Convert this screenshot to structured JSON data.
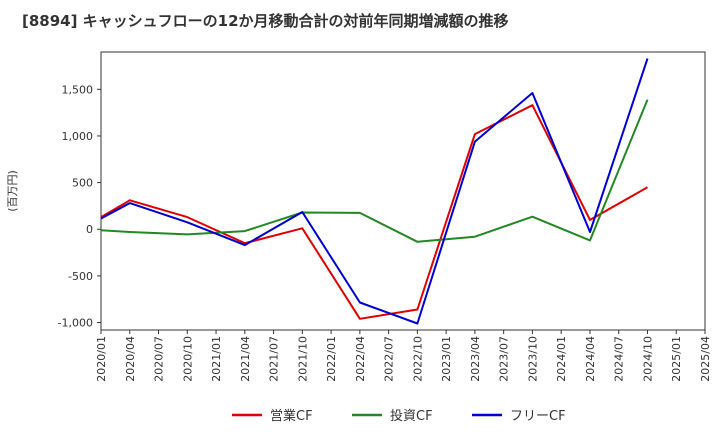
{
  "chart_data": {
    "type": "line",
    "title": "[8894]  キャッシュフローの12か月移動合計の対前年同期増減額の推移",
    "ylabel": "(百万円)",
    "xlabel": "",
    "ylim": [
      -1080,
      1900
    ],
    "yticks": [
      -1000,
      -500,
      0,
      500,
      1000,
      1500
    ],
    "ytick_labels": [
      "-1,000",
      "-500",
      "0",
      "500",
      "1,000",
      "1,500"
    ],
    "categories": [
      "2020/01",
      "2020/04",
      "2020/07",
      "2020/10",
      "2021/01",
      "2021/04",
      "2021/07",
      "2021/10",
      "2022/01",
      "2022/04",
      "2022/07",
      "2022/10",
      "2023/01",
      "2023/04",
      "2023/07",
      "2023/10",
      "2024/01",
      "2024/04",
      "2024/07",
      "2024/10",
      "2025/01",
      "2025/04"
    ],
    "grid": true,
    "legend_position": "bottom",
    "series": [
      {
        "name": "営業CF",
        "color": "#dd0000",
        "points": [
          [
            "2020/01",
            130
          ],
          [
            "2020/04",
            310
          ],
          [
            "2020/10",
            130
          ],
          [
            "2021/04",
            -150
          ],
          [
            "2021/10",
            10
          ],
          [
            "2022/04",
            -960
          ],
          [
            "2022/10",
            -860
          ],
          [
            "2023/04",
            1020
          ],
          [
            "2023/10",
            1330
          ],
          [
            "2024/04",
            100
          ],
          [
            "2024/10",
            450
          ]
        ]
      },
      {
        "name": "投資CF",
        "color": "#228822",
        "points": [
          [
            "2020/01",
            -10
          ],
          [
            "2020/04",
            -30
          ],
          [
            "2020/10",
            -55
          ],
          [
            "2021/04",
            -20
          ],
          [
            "2021/10",
            180
          ],
          [
            "2022/04",
            175
          ],
          [
            "2022/10",
            -135
          ],
          [
            "2023/04",
            -80
          ],
          [
            "2023/10",
            135
          ],
          [
            "2024/04",
            -120
          ],
          [
            "2024/10",
            1390
          ]
        ]
      },
      {
        "name": "フリーCF",
        "color": "#0000cc",
        "points": [
          [
            "2020/01",
            115
          ],
          [
            "2020/04",
            280
          ],
          [
            "2020/10",
            75
          ],
          [
            "2021/04",
            -170
          ],
          [
            "2021/10",
            185
          ],
          [
            "2022/04",
            -785
          ],
          [
            "2022/10",
            -1010
          ],
          [
            "2023/04",
            940
          ],
          [
            "2023/10",
            1460
          ],
          [
            "2024/04",
            -30
          ],
          [
            "2024/10",
            1830
          ]
        ]
      }
    ]
  }
}
